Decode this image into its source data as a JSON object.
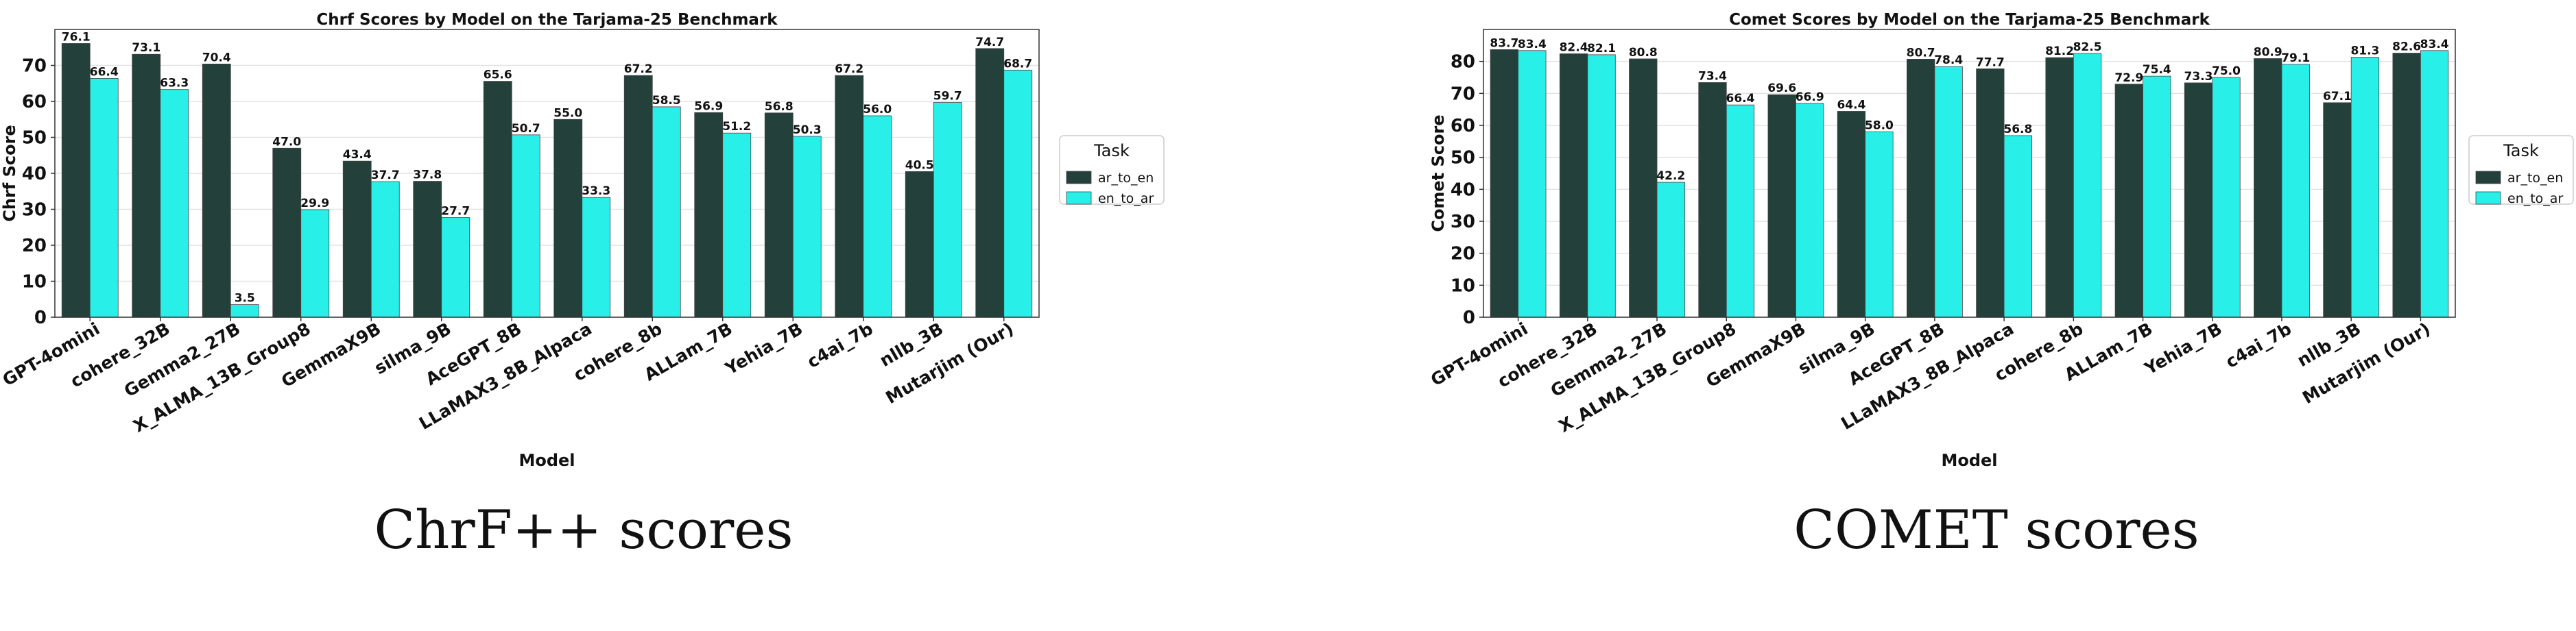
{
  "captions": {
    "left": "ChrF++ scores",
    "right": "COMET scores"
  },
  "colors": {
    "ar_to_en": "#24403a",
    "en_to_ar": "#28f0e8",
    "grid": "#e3e3e3",
    "axis": "#333333"
  },
  "chart_data": [
    {
      "type": "bar",
      "title": "Chrf Scores by Model on the Tarjama-25 Benchmark",
      "xlabel": "Model",
      "ylabel": "Chrf Score",
      "ylim": [
        0,
        80
      ],
      "yticks": [
        0,
        10,
        20,
        30,
        40,
        50,
        60,
        70
      ],
      "grid": true,
      "legend_position": "outside-right",
      "legend_title": "Task",
      "categories": [
        "GPT-4omini",
        "cohere_32B",
        "Gemma2_27B",
        "X_ALMA_13B_Group8",
        "GemmaX9B",
        "silma_9B",
        "AceGPT_8B",
        "LLaMAX3_8B_Alpaca",
        "cohere_8b",
        "ALLam_7B",
        "Yehia_7B",
        "c4ai_7b",
        "nllb_3B",
        "Mutarjim (Our)"
      ],
      "series": [
        {
          "name": "ar_to_en",
          "values": [
            76.1,
            73.1,
            70.4,
            47.0,
            43.4,
            37.8,
            65.6,
            55.0,
            67.2,
            56.9,
            56.8,
            67.2,
            40.5,
            74.7
          ]
        },
        {
          "name": "en_to_ar",
          "values": [
            66.4,
            63.3,
            3.5,
            29.9,
            37.7,
            27.7,
            50.7,
            33.3,
            58.5,
            51.2,
            50.3,
            56.0,
            59.7,
            68.7
          ]
        }
      ]
    },
    {
      "type": "bar",
      "title": "Comet Scores by Model on the Tarjama-25 Benchmark",
      "xlabel": "Model",
      "ylabel": "Comet Score",
      "ylim": [
        0,
        90
      ],
      "yticks": [
        0,
        10,
        20,
        30,
        40,
        50,
        60,
        70,
        80
      ],
      "grid": true,
      "legend_position": "outside-right",
      "legend_title": "Task",
      "categories": [
        "GPT-4omini",
        "cohere_32B",
        "Gemma2_27B",
        "X_ALMA_13B_Group8",
        "GemmaX9B",
        "silma_9B",
        "AceGPT_8B",
        "LLaMAX3_8B_Alpaca",
        "cohere_8b",
        "ALLam_7B",
        "Yehia_7B",
        "c4ai_7b",
        "nllb_3B",
        "Mutarjim (Our)"
      ],
      "series": [
        {
          "name": "ar_to_en",
          "values": [
            83.7,
            82.4,
            80.8,
            73.4,
            69.6,
            64.4,
            80.7,
            77.7,
            81.2,
            72.9,
            73.3,
            80.9,
            67.1,
            82.6
          ]
        },
        {
          "name": "en_to_ar",
          "values": [
            83.4,
            82.1,
            42.2,
            66.4,
            66.9,
            58.0,
            78.4,
            56.8,
            82.5,
            75.4,
            75.0,
            79.1,
            81.3,
            83.4
          ]
        }
      ]
    }
  ]
}
